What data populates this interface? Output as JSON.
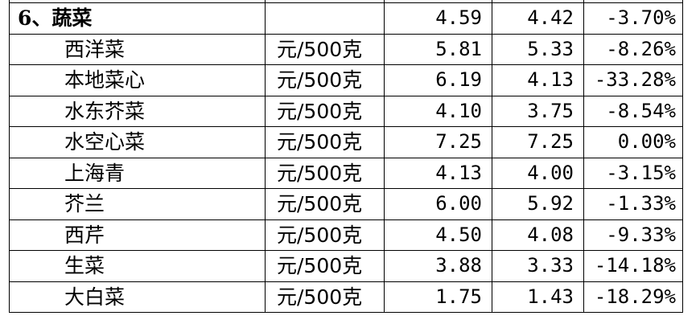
{
  "category": {
    "name": "6、蔬菜",
    "unit": "",
    "prev": "4.59",
    "curr": "4.42",
    "change": "-3.70%"
  },
  "rows": [
    {
      "name": "西洋菜",
      "unit": "元/500克",
      "prev": "5.81",
      "curr": "5.33",
      "change": "-8.26%"
    },
    {
      "name": "本地菜心",
      "unit": "元/500克",
      "prev": "6.19",
      "curr": "4.13",
      "change": "-33.28%"
    },
    {
      "name": "水东芥菜",
      "unit": "元/500克",
      "prev": "4.10",
      "curr": "3.75",
      "change": "-8.54%"
    },
    {
      "name": "水空心菜",
      "unit": "元/500克",
      "prev": "7.25",
      "curr": "7.25",
      "change": "0.00%"
    },
    {
      "name": "上海青",
      "unit": "元/500克",
      "prev": "4.13",
      "curr": "4.00",
      "change": "-3.15%"
    },
    {
      "name": "芥兰",
      "unit": "元/500克",
      "prev": "6.00",
      "curr": "5.92",
      "change": "-1.33%"
    },
    {
      "name": "西芹",
      "unit": "元/500克",
      "prev": "4.50",
      "curr": "4.08",
      "change": "-9.33%"
    },
    {
      "name": "生菜",
      "unit": "元/500克",
      "prev": "3.88",
      "curr": "3.33",
      "change": "-14.18%"
    },
    {
      "name": "大白菜",
      "unit": "元/500克",
      "prev": "1.75",
      "curr": "1.43",
      "change": "-18.29%"
    }
  ]
}
